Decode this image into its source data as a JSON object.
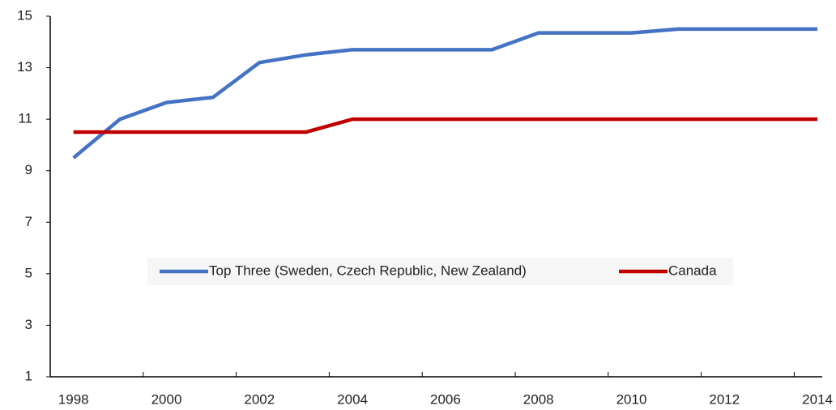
{
  "chart_data": {
    "type": "line",
    "categories": [
      "1998",
      null,
      "2000",
      null,
      "2002",
      null,
      "2004",
      null,
      "2006",
      null,
      "2008",
      null,
      "2010",
      null,
      "2012",
      null,
      "2014"
    ],
    "series": [
      {
        "name": "Top Three (Sweden, Czech Republic, New Zealand)",
        "color": "#4472c4",
        "values": [
          9.5,
          11.0,
          11.65,
          11.85,
          13.2,
          13.5,
          13.7,
          13.7,
          13.7,
          13.7,
          14.35,
          14.35,
          14.35,
          14.5,
          14.5,
          14.5,
          14.5
        ]
      },
      {
        "name": "Canada",
        "color": "#c00000",
        "values": [
          10.5,
          10.5,
          10.5,
          10.5,
          10.5,
          10.5,
          11.0,
          11.0,
          11.0,
          11.0,
          11.0,
          11.0,
          11.0,
          11.0,
          11.0,
          11.0,
          11.0
        ]
      }
    ],
    "ylim": [
      1,
      15
    ],
    "yticks": [
      1,
      3,
      5,
      7,
      9,
      11,
      13,
      15
    ],
    "grid": false
  }
}
